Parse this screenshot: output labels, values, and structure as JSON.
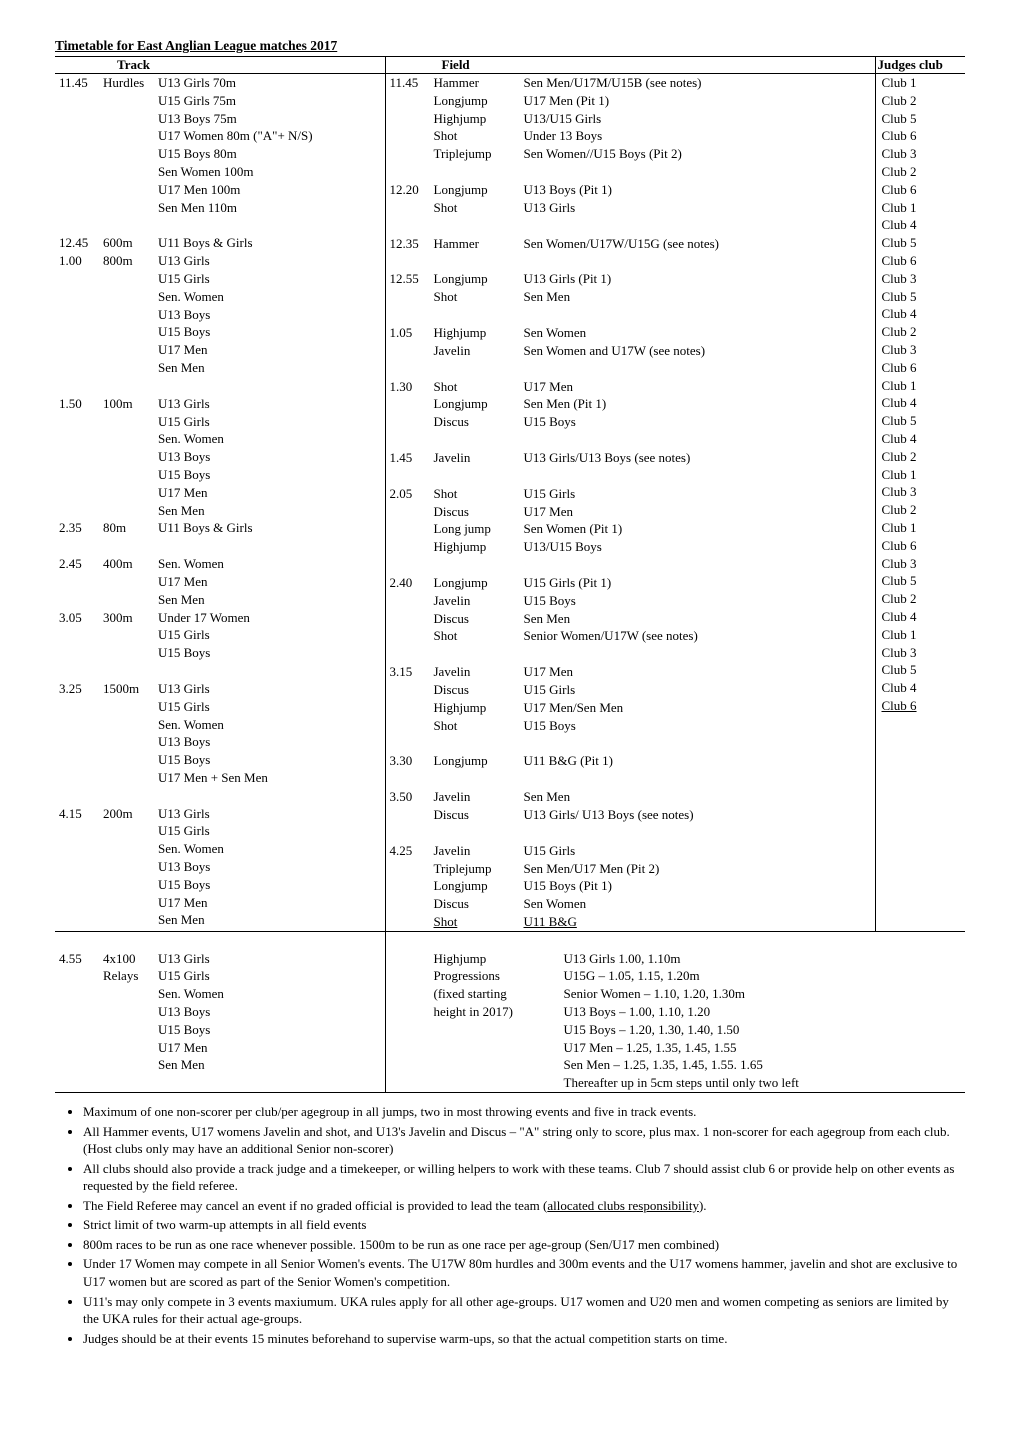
{
  "title": "Timetable for East Anglian League matches 2017",
  "headers": {
    "track": "Track",
    "field": "Field",
    "judges": "Judges club"
  },
  "track": [
    {
      "time": "11.45",
      "ev": "Hurdles",
      "items": [
        "U13 Girls 70m",
        "U15 Girls 75m",
        "U13 Boys 75m",
        "U17 Women  80m (\"A\"+ N/S)",
        "U15 Boys 80m",
        "Sen Women 100m",
        "U17 Men 100m",
        "Sen Men 110m"
      ]
    },
    {
      "blank": true
    },
    {
      "time": "12.45",
      "ev": "600m",
      "items": [
        "U11 Boys & Girls"
      ]
    },
    {
      "time": "1.00",
      "ev": "800m",
      "items": [
        "U13 Girls",
        "U15 Girls",
        "Sen. Women",
        "U13 Boys",
        "U15 Boys",
        "U17 Men",
        "Sen Men"
      ]
    },
    {
      "blank": true
    },
    {
      "time": "1.50",
      "ev": "100m",
      "items": [
        "U13 Girls",
        "U15 Girls",
        "Sen. Women",
        "U13 Boys",
        "U15 Boys",
        "U17 Men",
        "Sen Men"
      ]
    },
    {
      "time": "2.35",
      "ev": "80m",
      "items": [
        "U11 Boys & Girls"
      ]
    },
    {
      "blank": true
    },
    {
      "time": "2.45",
      "ev": "400m",
      "items": [
        "Sen. Women",
        "U17 Men",
        "Sen Men"
      ]
    },
    {
      "time": "3.05",
      "ev": "300m",
      "items": [
        "Under 17 Women",
        "U15 Girls",
        "U15 Boys"
      ]
    },
    {
      "blank": true
    },
    {
      "time": "3.25",
      "ev": "1500m",
      "items": [
        "U13 Girls",
        "U15 Girls",
        "Sen. Women",
        "U13 Boys",
        "U15 Boys",
        "U17 Men + Sen Men"
      ]
    },
    {
      "blank": true
    },
    {
      "time": "4.15",
      "ev": "200m",
      "items": [
        "U13 Girls",
        "U15 Girls",
        "Sen. Women",
        "U13 Boys",
        "U15 Boys",
        "U17 Men",
        "Sen Men"
      ]
    },
    {
      "blank": true
    },
    {
      "time": "4.55",
      "ev": "4x100",
      "ev2": "Relays",
      "items": [
        "U13 Girls",
        "U15 Girls",
        "Sen. Women",
        "U13 Boys",
        "U15 Boys",
        "U17 Men",
        "Sen Men"
      ]
    }
  ],
  "field": [
    {
      "time": "11.45",
      "rows": [
        [
          "Hammer",
          "Sen Men/U17M/U15B (see notes)",
          "Club 1"
        ],
        [
          "Longjump",
          "U17 Men (Pit 1)",
          "Club 2"
        ],
        [
          "Highjump",
          "U13/U15 Girls",
          "Club 5"
        ],
        [
          "Shot",
          "Under 13 Boys",
          "Club 6"
        ],
        [
          "Triplejump",
          "Sen Women//U15 Boys (Pit 2)",
          "Club 3"
        ]
      ]
    },
    {
      "blank": true
    },
    {
      "time": "12.20",
      "rows": [
        [
          "Longjump",
          "U13 Boys (Pit 1)",
          "Club 2"
        ],
        [
          "Shot",
          "U13 Girls",
          "Club 6"
        ]
      ]
    },
    {
      "blank": true
    },
    {
      "time": "12.35",
      "rows": [
        [
          "Hammer",
          "Sen Women/U17W/U15G (see notes)",
          "Club 1"
        ]
      ]
    },
    {
      "blank": true
    },
    {
      "time": "12.55",
      "rows": [
        [
          "Longjump",
          "U13 Girls (Pit 1)",
          "Club 4"
        ],
        [
          "Shot",
          "Sen Men",
          "Club 5"
        ]
      ]
    },
    {
      "blank": true
    },
    {
      "time": "1.05",
      "rows": [
        [
          "Highjump",
          "Sen Women",
          "Club 6"
        ],
        [
          "Javelin",
          "Sen Women and U17W (see notes)",
          "Club 3"
        ]
      ]
    },
    {
      "blank": true
    },
    {
      "time": "1.30",
      "rows": [
        [
          "Shot",
          "U17 Men",
          "Club 5"
        ],
        [
          "Longjump",
          "Sen Men (Pit 1)",
          "Club 4"
        ],
        [
          "Discus",
          "U15 Boys",
          "Club 2"
        ]
      ]
    },
    {
      "blank": true
    },
    {
      "time": "1.45",
      "rows": [
        [
          "Javelin",
          "U13 Girls/U13 Boys (see notes)",
          "Club 3"
        ]
      ]
    },
    {
      "blank": true
    },
    {
      "time": "2.05",
      "rows": [
        [
          "Shot",
          "U15 Girls",
          "Club 6"
        ],
        [
          "Discus",
          "U17 Men",
          "Club 1"
        ],
        [
          "Long jump",
          "Sen Women (Pit 1)",
          "Club 4"
        ],
        [
          "Highjump",
          "U13/U15 Boys",
          "Club 5"
        ]
      ]
    },
    {
      "blank": true
    },
    {
      "time": "2.40",
      "rows": [
        [
          "Longjump",
          "U15 Girls (Pit 1)",
          "Club 4"
        ],
        [
          "Javelin",
          "U15 Boys",
          "Club 2"
        ],
        [
          "Discus",
          "Sen Men",
          "Club 1"
        ],
        [
          "Shot",
          "Senior Women/U17W (see notes)",
          "Club 3"
        ]
      ]
    },
    {
      "blank": true
    },
    {
      "time": "3.15",
      "rows": [
        [
          "Javelin",
          "U17 Men",
          "Club 2"
        ],
        [
          "Discus",
          "U15 Girls",
          "Club 1"
        ],
        [
          "Highjump",
          "U17 Men/Sen Men",
          "Club 6"
        ],
        [
          "Shot",
          "U15 Boys",
          "Club 3"
        ]
      ]
    },
    {
      "blank": true
    },
    {
      "time": "3.30",
      "rows": [
        [
          "Longjump",
          "U11 B&G (Pit 1)",
          "Club 5"
        ]
      ]
    },
    {
      "blank": true
    },
    {
      "time": "3.50",
      "rows": [
        [
          "Javelin",
          "Sen Men",
          "Club 2"
        ],
        [
          "Discus",
          "U13 Girls/ U13 Boys (see notes)",
          "Club 4"
        ]
      ]
    },
    {
      "blank": true
    },
    {
      "time": "4.25",
      "rows": [
        [
          "Javelin",
          "U15 Girls",
          "Club 1"
        ],
        [
          "Triplejump",
          "Sen Men/U17 Men (Pit 2)",
          "Club 3"
        ],
        [
          "Longjump",
          "U15 Boys (Pit 1)",
          "Club 5"
        ],
        [
          "Discus",
          "Sen Women",
          "Club 4"
        ],
        [
          "Shot",
          "U11 B&G",
          "Club 6"
        ]
      ],
      "last_underline": true
    }
  ],
  "progressions": {
    "labels": [
      "Highjump",
      "Progressions",
      "(fixed starting",
      "height in 2017)"
    ],
    "lines": [
      "U13 Girls 1.00, 1.10m",
      "U15G – 1.05, 1.15, 1.20m",
      "Senior Women – 1.10, 1.20, 1.30m",
      "U13 Boys – 1.00, 1.10, 1.20",
      "U15 Boys – 1.20, 1.30, 1.40, 1.50",
      "U17 Men – 1.25, 1.35, 1.45, 1.55",
      "Sen Men –  1.25, 1.35, 1.45, 1.55. 1.65",
      "Thereafter up in 5cm steps until only two left"
    ]
  },
  "notes": [
    "Maximum of one non-scorer per club/per agegroup in all jumps,  two in most throwing events and five in track events.",
    "All Hammer events, U17 womens Javelin and shot, and  U13's Javelin and Discus – \"A\" string only to score, plus max. 1 non-scorer for each agegroup from each club. (Host clubs only may have an additional Senior non-scorer)",
    "All clubs should also provide a track judge and a timekeeper, or willing helpers to work with these teams.   Club 7 should assist club 6 or provide  help on other events as requested by the field referee.",
    "The Field Referee may cancel an event if no graded official is provided to lead the team (<span class=\"u\">allocated clubs responsibility</span>).",
    "Strict limit of two warm-up attempts in all field events",
    "800m races to be run as one race whenever possible. 1500m  to be run as one race per age-group (Sen/U17 men combined)",
    "Under 17 Women may compete in all Senior Women's events. The U17W 80m hurdles and 300m events and the U17 womens hammer, javelin and shot are exclusive to U17 women but are scored as part of the Senior Women's competition.",
    "U11's may only compete in 3 events maxiumum. UKA rules apply for all other age-groups.  U17 women and U20 men and women competing as seniors are limited by the UKA rules for their actual age-groups.",
    "Judges should be at their events 15 minutes beforehand to supervise warm-ups, so that the actual competition starts on time."
  ]
}
